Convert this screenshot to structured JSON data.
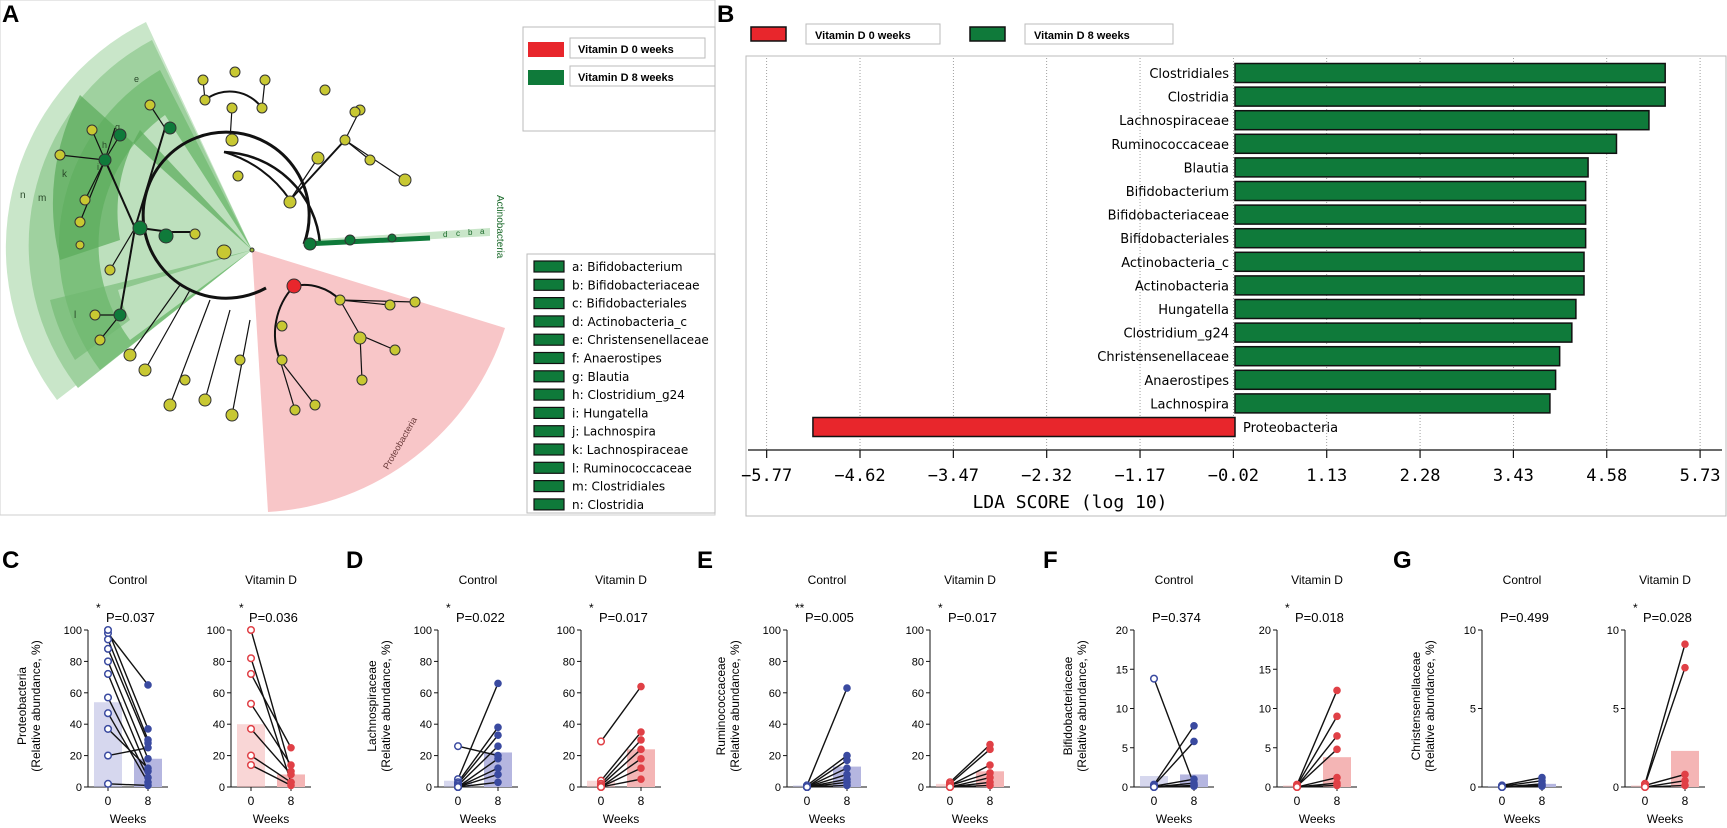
{
  "panel_letters": {
    "A": "A",
    "B": "B",
    "C": "C",
    "D": "D",
    "E": "E",
    "F": "F",
    "G": "G"
  },
  "colors": {
    "red": "#e8262c",
    "green": "#0f7a3a",
    "light_green": "#c8e6c8",
    "pink": "#f8c6c8",
    "node_yellow": "#c8c832",
    "blue": "#3a4aa0",
    "blue_fill": "#b5b6e0",
    "red_point": "#e04046",
    "red_fill": "#f4b5b5"
  },
  "cladogram": {
    "legend_groups": [
      "Vitamin D 0 weeks",
      "Vitamin D 8 weeks"
    ],
    "taxa_legend": [
      "a: Bifidobacterium",
      "b: Bifidobacteriaceae",
      "c: Bifidobacteriales",
      "d: Actinobacteria_c",
      "e: Christensenellaceae",
      "f: Anaerostipes",
      "g: Blautia",
      "h: Clostridium_g24",
      "i: Hungatella",
      "j: Lachnospira",
      "k: Lachnospiraceae",
      "l: Ruminococcaceae",
      "m: Clostridiales",
      "n: Clostridia"
    ],
    "sector_labels": {
      "actinobacteria": "Actinobacteria",
      "proteobacteria": "Proteobacteria"
    },
    "clade_letters": [
      "a",
      "b",
      "c",
      "d",
      "e",
      "g",
      "h",
      "i",
      "k",
      "l",
      "m",
      "n"
    ]
  },
  "chart_data": [
    {
      "id": "B",
      "type": "bar",
      "orientation": "horizontal",
      "legend": [
        "Vitamin D 0 weeks",
        "Vitamin D 8 weeks"
      ],
      "categories": [
        "Clostridiales",
        "Clostridia",
        "Lachnospiraceae",
        "Ruminococcaceae",
        "Blautia",
        "Bifidobacterium",
        "Bifidobacteriaceae",
        "Bifidobacteriales",
        "Actinobacteria_c",
        "Actinobacteria",
        "Hungatella",
        "Clostridium_g24",
        "Christensenellaceae",
        "Anaerostipes",
        "Lachnospira",
        "Proteobacteria"
      ],
      "values": [
        5.3,
        5.3,
        5.1,
        4.7,
        4.35,
        4.32,
        4.32,
        4.32,
        4.3,
        4.3,
        4.2,
        4.15,
        4.0,
        3.95,
        3.88,
        -5.2
      ],
      "groups": [
        "8w",
        "8w",
        "8w",
        "8w",
        "8w",
        "8w",
        "8w",
        "8w",
        "8w",
        "8w",
        "8w",
        "8w",
        "8w",
        "8w",
        "8w",
        "0w"
      ],
      "xticks": [
        "−5.77",
        "−4.62",
        "−3.47",
        "−2.32",
        "−1.17",
        "−0.02",
        "1.13",
        "2.28",
        "3.43",
        "4.58",
        "5.73"
      ],
      "tick_values": [
        -5.77,
        -4.62,
        -3.47,
        -2.32,
        -1.17,
        -0.02,
        1.13,
        2.28,
        3.43,
        4.58,
        5.73
      ],
      "xlim": [
        -6.0,
        6.0
      ],
      "xlabel": "LDA SCORE (log 10)"
    },
    {
      "id": "C",
      "type": "paired-scatter",
      "ylabel": [
        "Proteobacteria",
        "(Relative abundance, %)"
      ],
      "ylim": [
        0,
        100
      ],
      "yticks": [
        "0",
        "20",
        "40",
        "60",
        "80",
        "100"
      ],
      "ytick_values": [
        0,
        20,
        40,
        60,
        80,
        100
      ],
      "xlabel": "Weeks",
      "xticks": [
        "0",
        "8"
      ],
      "groups": [
        {
          "name": "Control",
          "stars": "*",
          "pval": "P=0.037",
          "color": "blue",
          "bar_means": [
            54,
            18
          ],
          "pairs": [
            [
              98,
              65
            ],
            [
              100,
              37
            ],
            [
              94,
              30
            ],
            [
              88,
              28
            ],
            [
              80,
              18
            ],
            [
              72,
              10
            ],
            [
              57,
              6
            ],
            [
              47,
              3
            ],
            [
              37,
              12
            ],
            [
              20,
              25
            ],
            [
              2,
              1
            ]
          ]
        },
        {
          "name": "Vitamin D",
          "stars": "*",
          "pval": "P=0.036",
          "color": "red",
          "bar_means": [
            40,
            8
          ],
          "pairs": [
            [
              100,
              10
            ],
            [
              82,
              3
            ],
            [
              72,
              25
            ],
            [
              53,
              14
            ],
            [
              37,
              8
            ],
            [
              20,
              3
            ],
            [
              14,
              1
            ]
          ]
        }
      ]
    },
    {
      "id": "D",
      "type": "paired-scatter",
      "ylabel": [
        "Lachnospiraceae",
        "(Relative abundance, %)"
      ],
      "ylim": [
        0,
        100
      ],
      "yticks": [
        "0",
        "20",
        "40",
        "60",
        "80",
        "100"
      ],
      "ytick_values": [
        0,
        20,
        40,
        60,
        80,
        100
      ],
      "xlabel": "Weeks",
      "xticks": [
        "0",
        "8"
      ],
      "groups": [
        {
          "name": "Control",
          "stars": "*",
          "pval": "P=0.022",
          "color": "blue",
          "bar_means": [
            4,
            22
          ],
          "pairs": [
            [
              26,
              20
            ],
            [
              5,
              66
            ],
            [
              3,
              38
            ],
            [
              2,
              33
            ],
            [
              1,
              26
            ],
            [
              0,
              18
            ],
            [
              0,
              12
            ],
            [
              0,
              8
            ],
            [
              0,
              3
            ]
          ]
        },
        {
          "name": "Vitamin D",
          "stars": "*",
          "pval": "P=0.017",
          "color": "red",
          "bar_means": [
            4,
            24
          ],
          "pairs": [
            [
              29,
              64
            ],
            [
              4,
              35
            ],
            [
              2,
              30
            ],
            [
              1,
              24
            ],
            [
              0,
              18
            ],
            [
              0,
              12
            ],
            [
              0,
              5
            ]
          ]
        }
      ]
    },
    {
      "id": "E",
      "type": "paired-scatter",
      "ylabel": [
        "Ruminococcaceae",
        "(Relative abundance, %)"
      ],
      "ylim": [
        0,
        100
      ],
      "yticks": [
        "0",
        "20",
        "40",
        "60",
        "80",
        "100"
      ],
      "ytick_values": [
        0,
        20,
        40,
        60,
        80,
        100
      ],
      "xlabel": "Weeks",
      "xticks": [
        "0",
        "8"
      ],
      "groups": [
        {
          "name": "Control",
          "stars": "**",
          "pval": "P=0.005",
          "color": "blue",
          "bar_means": [
            1,
            13
          ],
          "pairs": [
            [
              1,
              63
            ],
            [
              1,
              20
            ],
            [
              0,
              17
            ],
            [
              0,
              12
            ],
            [
              0,
              8
            ],
            [
              0,
              5
            ],
            [
              0,
              3
            ],
            [
              0,
              1
            ]
          ]
        },
        {
          "name": "Vitamin D",
          "stars": "*",
          "pval": "P=0.017",
          "color": "red",
          "bar_means": [
            2,
            10
          ],
          "pairs": [
            [
              3,
              27
            ],
            [
              2,
              24
            ],
            [
              1,
              14
            ],
            [
              1,
              9
            ],
            [
              0,
              6
            ],
            [
              0,
              3
            ],
            [
              0,
              1
            ]
          ]
        }
      ]
    },
    {
      "id": "F",
      "type": "paired-scatter",
      "ylabel": [
        "Bifidobacteriaceae",
        "(Relative abundance, %)"
      ],
      "ylim": [
        0,
        20
      ],
      "yticks": [
        "0",
        "5",
        "10",
        "15",
        "20"
      ],
      "ytick_values": [
        0,
        5,
        10,
        15,
        20
      ],
      "xlabel": "Weeks",
      "xticks": [
        "0",
        "8"
      ],
      "groups": [
        {
          "name": "Control",
          "stars": "",
          "pval": "P=0.374",
          "color": "blue",
          "bar_means": [
            1.4,
            1.6
          ],
          "pairs": [
            [
              13.8,
              0.3
            ],
            [
              0.3,
              7.8
            ],
            [
              0.2,
              5.8
            ],
            [
              0.1,
              1.0
            ],
            [
              0,
              0.5
            ],
            [
              0,
              0.2
            ],
            [
              0,
              0.1
            ]
          ]
        },
        {
          "name": "Vitamin D",
          "stars": "*",
          "pval": "P=0.018",
          "color": "red",
          "bar_means": [
            0.2,
            3.8
          ],
          "pairs": [
            [
              0.3,
              12.3
            ],
            [
              0.2,
              9.0
            ],
            [
              0.1,
              6.5
            ],
            [
              0.1,
              4.8
            ],
            [
              0,
              1.2
            ],
            [
              0,
              0.5
            ],
            [
              0,
              0.2
            ]
          ]
        }
      ]
    },
    {
      "id": "G",
      "type": "paired-scatter",
      "ylabel": [
        "Christensenellaceae",
        "(Relative abundance, %)"
      ],
      "ylim": [
        0,
        10
      ],
      "yticks": [
        "0",
        "5",
        "10"
      ],
      "ytick_values": [
        0,
        5,
        10
      ],
      "xlabel": "Weeks",
      "xticks": [
        "0",
        "8"
      ],
      "groups": [
        {
          "name": "Control",
          "stars": "",
          "pval": "P=0.499",
          "color": "blue",
          "bar_means": [
            0.05,
            0.2
          ],
          "pairs": [
            [
              0.1,
              0.6
            ],
            [
              0.05,
              0.4
            ],
            [
              0,
              0.2
            ],
            [
              0,
              0.1
            ],
            [
              0,
              0.05
            ]
          ]
        },
        {
          "name": "Vitamin D",
          "stars": "*",
          "pval": "P=0.028",
          "color": "red",
          "bar_means": [
            0.1,
            2.3
          ],
          "pairs": [
            [
              0.2,
              9.1
            ],
            [
              0.15,
              7.6
            ],
            [
              0.1,
              0.8
            ],
            [
              0,
              0.4
            ],
            [
              0,
              0.1
            ]
          ]
        }
      ]
    }
  ]
}
